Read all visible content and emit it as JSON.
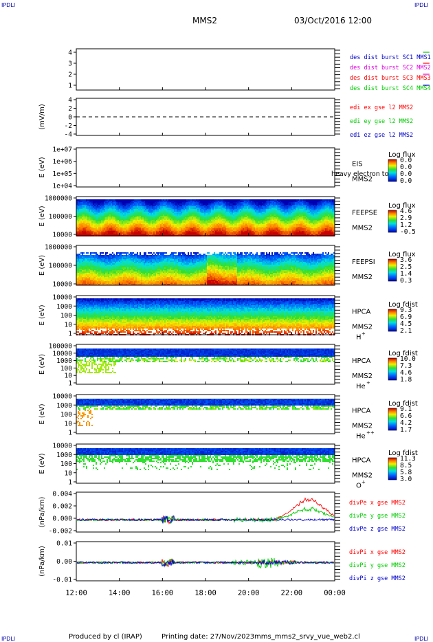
{
  "header": {
    "corner_left": "IPDLI",
    "corner_right": "IPDLI",
    "spacecraft": "MMS2",
    "datetime": "03/Oct/2016 12:00"
  },
  "footer": {
    "produced_by": "Produced by cl (IRAP)",
    "printing_date": "Printing date: 27/Nov/2023",
    "filename": "mms_mms2_srvy_vue_web2.cl",
    "corner_left": "IPDLI",
    "corner_right": "IPDLI"
  },
  "colors": {
    "red": "#ff0000",
    "magenta": "#e000e0",
    "green": "#00cc00",
    "blue": "#0000cc",
    "spectrum_low": "#0000c8",
    "spectrum_high": "#c80000"
  },
  "chart_data": [
    {
      "type": "bar",
      "name": "burst availability",
      "yticks": [
        "4",
        "3",
        "2",
        "1"
      ],
      "legend": [
        "des dist burst SC1 MMS1",
        "des dist burst SC2 MMS2",
        "des dist burst SC3 MMS3",
        "des dist burst SC4 MMS4"
      ],
      "intervals_hours": [
        [
          16.1,
          16.4
        ],
        [
          17.9,
          18.1
        ],
        [
          19.0,
          19.6
        ],
        [
          19.8,
          19.9
        ],
        [
          22.0,
          22.05
        ]
      ]
    },
    {
      "type": "line",
      "ylabel": "(mV/m)",
      "yticks": [
        "4",
        "2",
        "0",
        "-2",
        "-4"
      ],
      "ylim": [
        -5,
        5
      ],
      "legend": [
        "edi ex gse l2 MMS2",
        "edi ey gse l2 MMS2",
        "edi ez gse l2 MMS2"
      ],
      "data_start_hour": 22.9
    },
    {
      "type": "heatmap",
      "ylabel": "E (eV)",
      "yticks": [
        "1e+07",
        "1e+06",
        "1e+05",
        "1e+04"
      ],
      "instrument": [
        "EIS",
        "MMS2"
      ],
      "overlay": "heavy electron to",
      "cbar_title": "Log flux",
      "cbar_ticks": [
        "0.0",
        "0.0",
        "0.0",
        "0.0"
      ]
    },
    {
      "type": "heatmap",
      "ylabel": "E (eV)",
      "yticks": [
        "1000000",
        "100000",
        "10000"
      ],
      "instrument": [
        "FEEPSE",
        "MMS2"
      ],
      "cbar_title": "Log flux",
      "cbar_ticks": [
        "4.6",
        "2.9",
        "1.2",
        "-0.5"
      ]
    },
    {
      "type": "heatmap",
      "ylabel": "E (eV)",
      "yticks": [
        "1000000",
        "100000",
        "10000"
      ],
      "instrument": [
        "FEEPSI",
        "MMS2"
      ],
      "cbar_title": "Log flux",
      "cbar_ticks": [
        "3.6",
        "2.5",
        "1.4",
        "0.3"
      ]
    },
    {
      "type": "heatmap",
      "ylabel": "E (eV)",
      "yticks": [
        "10000",
        "1000",
        "100",
        "10",
        "1"
      ],
      "instrument": [
        "HPCA",
        "MMS2"
      ],
      "species": "H",
      "charge": "+",
      "cbar_title": "Log fdist",
      "cbar_ticks": [
        "9.3",
        "6.9",
        "4.5",
        "2.1"
      ]
    },
    {
      "type": "heatmap",
      "ylabel": "E (eV)",
      "yticks": [
        "100000",
        "10000",
        "1000",
        "100",
        "10",
        "1"
      ],
      "instrument": [
        "HPCA",
        "MMS2"
      ],
      "species": "He",
      "charge": "+",
      "cbar_title": "Log fdist",
      "cbar_ticks": [
        "10.0",
        "7.3",
        "4.6",
        "1.8"
      ]
    },
    {
      "type": "heatmap",
      "ylabel": "E (eV)",
      "yticks": [
        "10000",
        "1000",
        "100",
        "10",
        "1"
      ],
      "instrument": [
        "HPCA",
        "MMS2"
      ],
      "species": "He",
      "charge": "++",
      "cbar_title": "Log fdist",
      "cbar_ticks": [
        "9.1",
        "6.6",
        "4.2",
        "1.7"
      ]
    },
    {
      "type": "heatmap",
      "ylabel": "E (eV)",
      "yticks": [
        "10000",
        "1000",
        "100",
        "10",
        "1"
      ],
      "instrument": [
        "HPCA",
        "MMS2"
      ],
      "species": "O",
      "charge": "+",
      "cbar_title": "Log fdist",
      "cbar_ticks": [
        "11.3",
        "8.5",
        "5.8",
        "3.0"
      ]
    },
    {
      "type": "line",
      "ylabel": "(nPa/km)",
      "yticks": [
        "0.004",
        "0.002",
        "0.000",
        "-0.002"
      ],
      "ylim": [
        -0.002,
        0.0045
      ],
      "legend": [
        "divPe x gse MMS2",
        "divPe y gse MMS2",
        "divPe z gse MMS2"
      ]
    },
    {
      "type": "line",
      "ylabel": "(nPa/km)",
      "yticks": [
        "0.01",
        "0.00",
        "-0.01"
      ],
      "ylim": [
        -0.014,
        0.016
      ],
      "legend": [
        "divPi x gse MMS2",
        "divPi y gse MMS2",
        "divPi z gse MMS2"
      ]
    }
  ],
  "xaxis": {
    "ticks": [
      "12:00",
      "14:00",
      "16:00",
      "18:00",
      "20:00",
      "22:00",
      "00:00"
    ]
  }
}
